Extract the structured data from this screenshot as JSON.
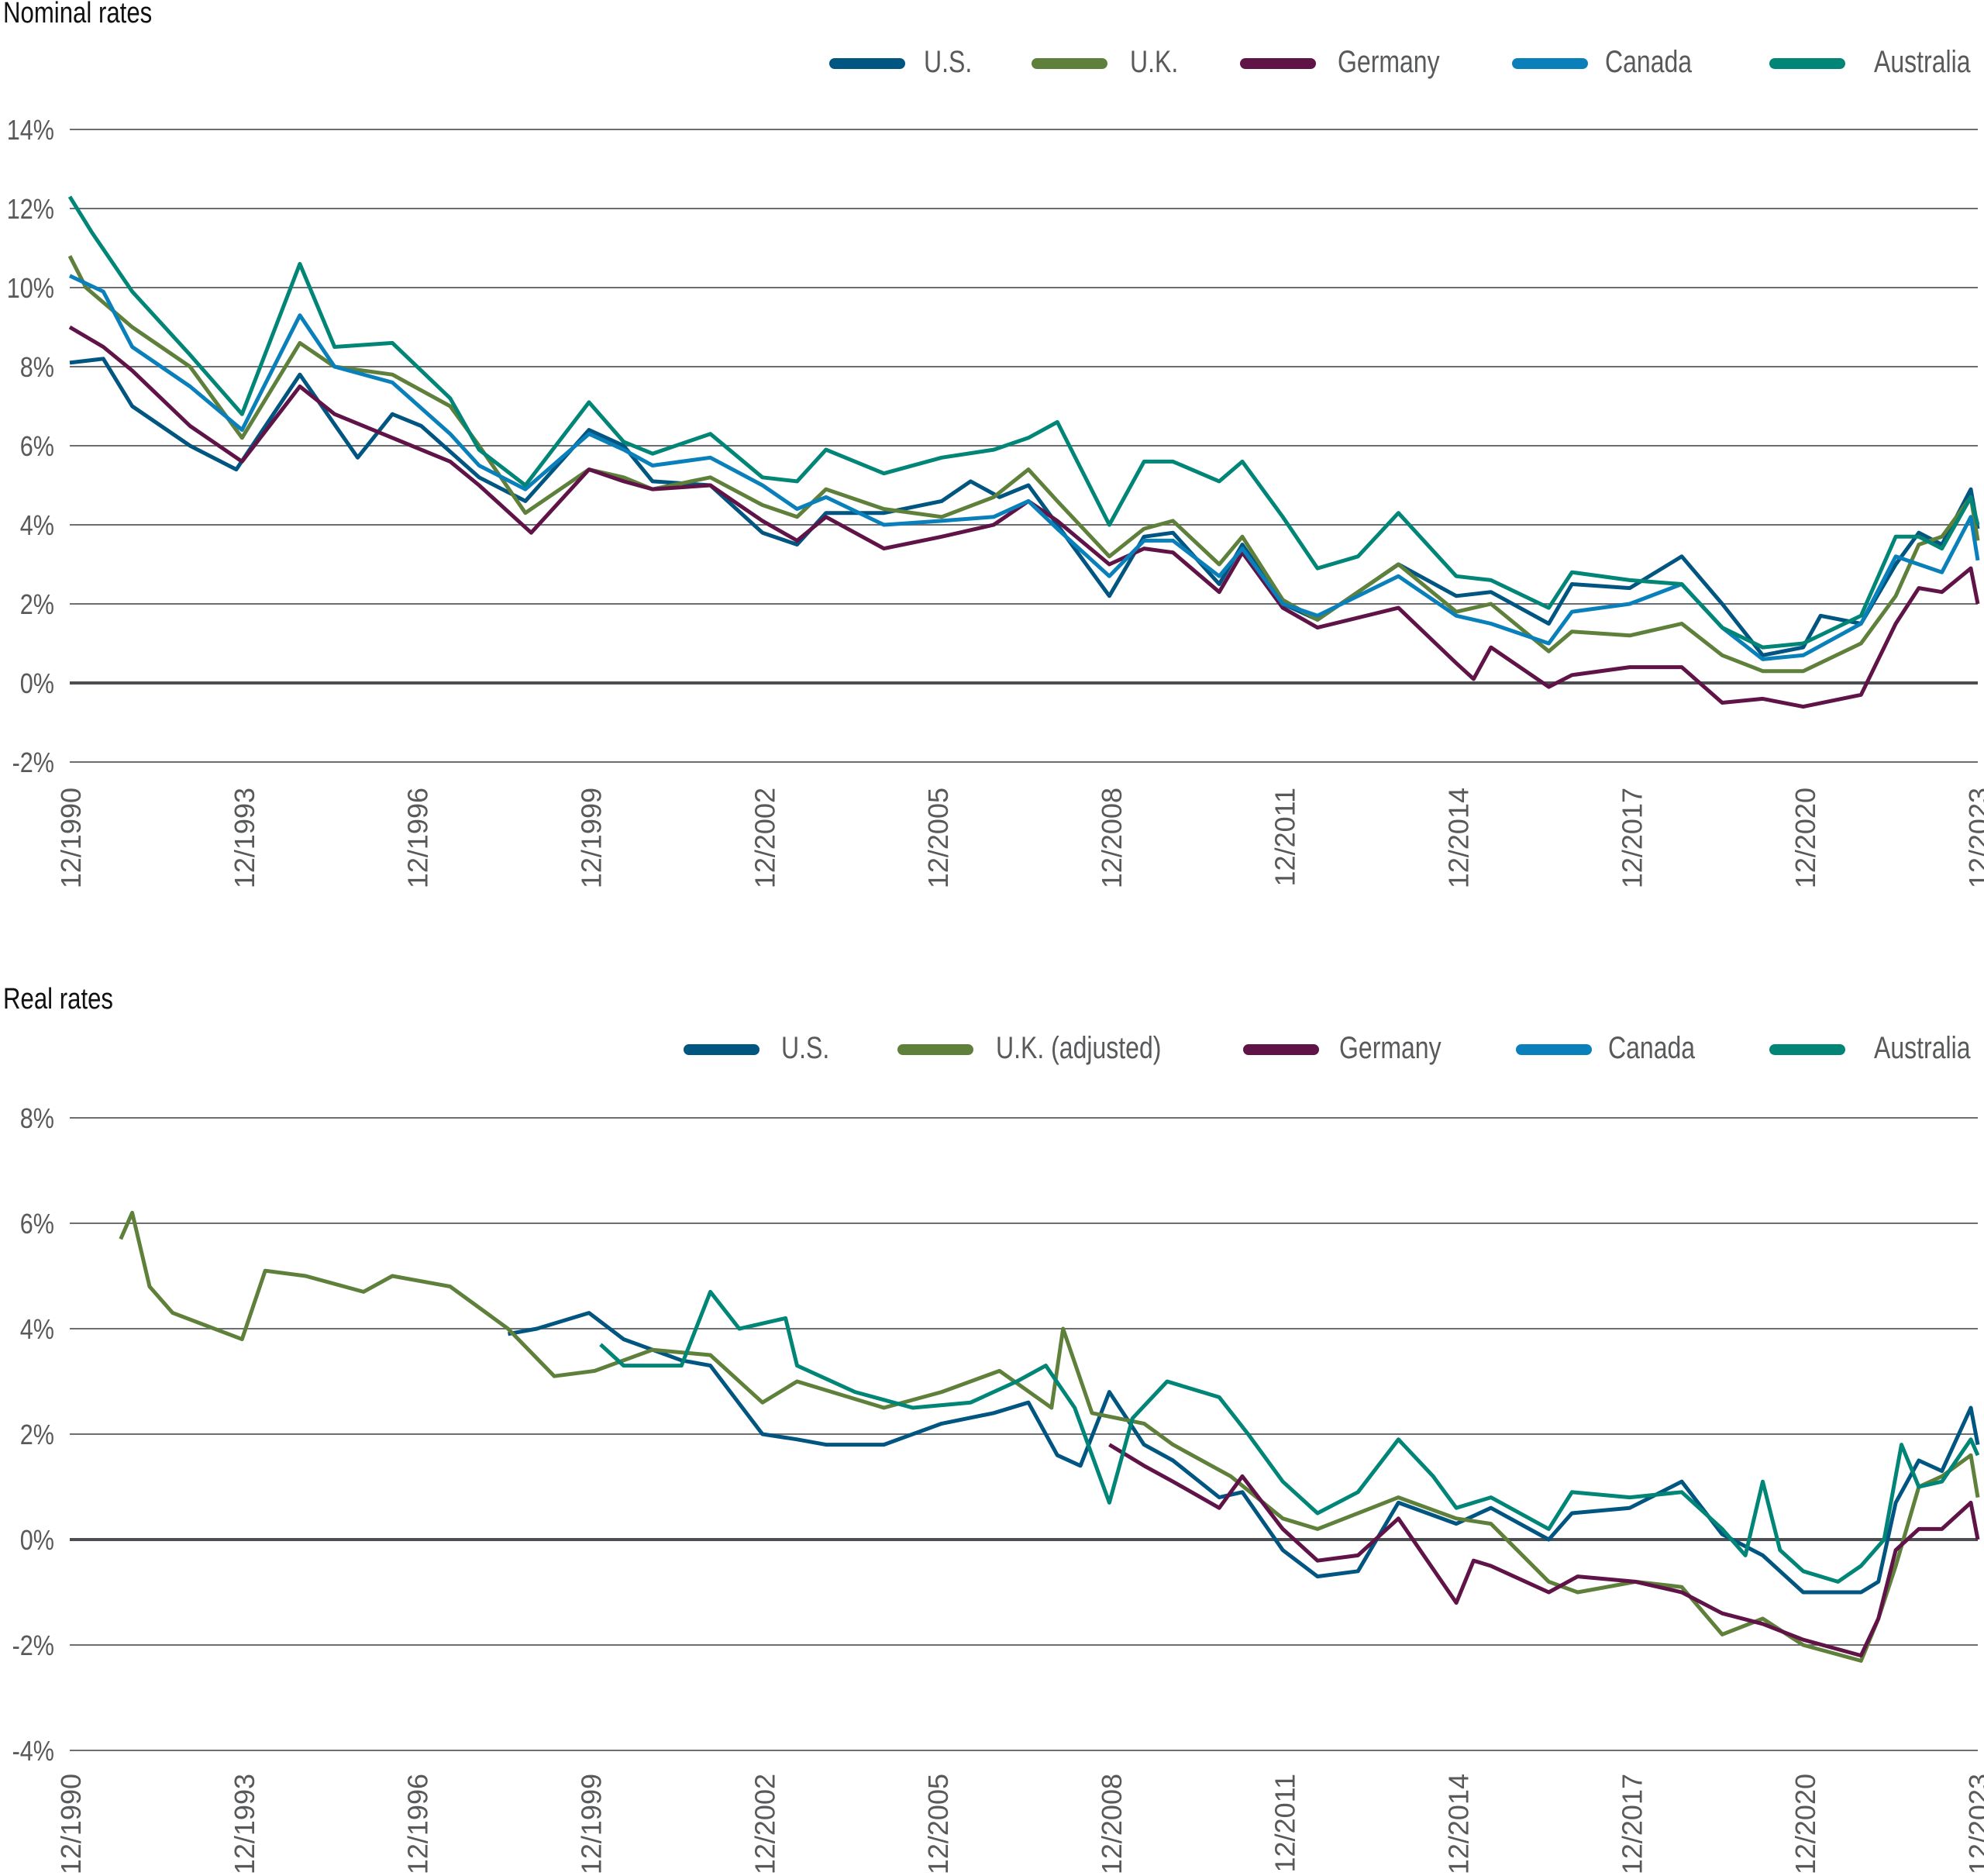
{
  "colors": {
    "us": "#005581",
    "uk": "#5f803a",
    "germany": "#601346",
    "canada": "#0a80bb",
    "australia": "#008577",
    "grid": "#6d6e71",
    "text": "#58595b"
  },
  "chart_data": [
    {
      "type": "line",
      "title": "Nominal rates",
      "xlabel": "",
      "ylabel": "",
      "y_ticks": [
        "14%",
        "12%",
        "10%",
        "8%",
        "6%",
        "4%",
        "2%",
        "0%",
        "-2%"
      ],
      "ylim": [
        -2,
        14
      ],
      "x_ticks": [
        "12/1990",
        "12/1993",
        "12/1996",
        "12/1999",
        "12/2002",
        "12/2005",
        "12/2008",
        "12/2011",
        "12/2014",
        "12/2017",
        "12/2020",
        "12/2023"
      ],
      "xlim": [
        1990.92,
        2023.92
      ],
      "grid": true,
      "legend": "top-right",
      "series": [
        {
          "name": "U.S.",
          "key": "us",
          "x": [
            1990.92,
            1991.5,
            1992,
            1993,
            1993.8,
            1994.9,
            1995.9,
            1996.5,
            1997,
            1998,
            1998.8,
            1999.9,
            2000.5,
            2001,
            2002,
            2002.9,
            2003.5,
            2004,
            2005,
            2006,
            2006.5,
            2007,
            2007.5,
            2008,
            2008.9,
            2009.5,
            2010,
            2010.8,
            2011.2,
            2011.9,
            2012.5,
            2013.5,
            2013.9,
            2014.9,
            2015.5,
            2016.5,
            2016.9,
            2017.9,
            2018.8,
            2019.5,
            2020.2,
            2020.9,
            2021.2,
            2021.9,
            2022.5,
            2022.9,
            2023.3,
            2023.8,
            2023.92
          ],
          "y": [
            8.1,
            8.2,
            7.0,
            6.0,
            5.4,
            7.8,
            5.7,
            6.8,
            6.5,
            5.2,
            4.6,
            6.4,
            6.0,
            5.1,
            5.0,
            3.8,
            3.5,
            4.3,
            4.3,
            4.6,
            5.1,
            4.7,
            5.0,
            4.0,
            2.2,
            3.7,
            3.8,
            2.5,
            3.5,
            2.0,
            1.6,
            2.6,
            3.0,
            2.2,
            2.3,
            1.5,
            2.5,
            2.4,
            3.2,
            2.0,
            0.7,
            0.9,
            1.7,
            1.5,
            3.0,
            3.8,
            3.5,
            4.9,
            3.9
          ]
        },
        {
          "name": "U.K.",
          "key": "uk",
          "x": [
            1990.92,
            1991.2,
            1992,
            1993,
            1993.9,
            1994.9,
            1995.5,
            1996.5,
            1997.5,
            1998,
            1998.8,
            1999.9,
            2000.5,
            2001,
            2002,
            2002.9,
            2003.5,
            2004,
            2005,
            2006,
            2006.9,
            2007.5,
            2008,
            2008.9,
            2009.5,
            2010,
            2010.8,
            2011.2,
            2011.9,
            2012.5,
            2013.9,
            2014.9,
            2015.5,
            2016.5,
            2016.9,
            2017.9,
            2018.8,
            2019.5,
            2020.2,
            2020.9,
            2021.9,
            2022.5,
            2022.9,
            2023.3,
            2023.8,
            2023.92
          ],
          "y": [
            10.8,
            10.0,
            9.0,
            8.0,
            6.2,
            8.6,
            8.0,
            7.8,
            7.0,
            6.0,
            4.3,
            5.4,
            5.2,
            4.9,
            5.2,
            4.5,
            4.2,
            4.9,
            4.4,
            4.2,
            4.7,
            5.4,
            4.6,
            3.2,
            3.9,
            4.1,
            3.0,
            3.7,
            2.1,
            1.6,
            3.0,
            1.8,
            2.0,
            0.8,
            1.3,
            1.2,
            1.5,
            0.7,
            0.3,
            0.3,
            1.0,
            2.2,
            3.5,
            3.7,
            4.7,
            3.6
          ]
        },
        {
          "name": "Germany",
          "key": "germany",
          "x": [
            1990.92,
            1991.5,
            1992,
            1993,
            1993.9,
            1994.9,
            1995.5,
            1996.5,
            1997.5,
            1998,
            1998.9,
            1999.9,
            2000.5,
            2001,
            2002,
            2002.9,
            2003.5,
            2004,
            2005,
            2006,
            2006.9,
            2007.5,
            2008,
            2008.9,
            2009.5,
            2010,
            2010.8,
            2011.2,
            2011.9,
            2012.5,
            2013.9,
            2014.9,
            2015.2,
            2015.5,
            2016.5,
            2016.9,
            2017.9,
            2018.8,
            2019.5,
            2020.2,
            2020.9,
            2021.9,
            2022.5,
            2022.9,
            2023.3,
            2023.8,
            2023.92
          ],
          "y": [
            9.0,
            8.5,
            7.9,
            6.5,
            5.6,
            7.5,
            6.8,
            6.2,
            5.6,
            5.0,
            3.8,
            5.4,
            5.1,
            4.9,
            5.0,
            4.1,
            3.6,
            4.2,
            3.4,
            3.7,
            4.0,
            4.6,
            4.1,
            3.0,
            3.4,
            3.3,
            2.3,
            3.3,
            1.9,
            1.4,
            1.9,
            0.5,
            0.1,
            0.9,
            -0.1,
            0.2,
            0.4,
            0.4,
            -0.5,
            -0.4,
            -0.6,
            -0.3,
            1.5,
            2.4,
            2.3,
            2.9,
            2.0
          ]
        },
        {
          "name": "Canada",
          "key": "canada",
          "x": [
            1990.92,
            1991.5,
            1992,
            1993,
            1993.9,
            1994.9,
            1995.5,
            1996.5,
            1997.5,
            1998,
            1998.8,
            1999.9,
            2000.5,
            2001,
            2002,
            2002.9,
            2003.5,
            2004,
            2005,
            2006,
            2006.9,
            2007.5,
            2008,
            2008.9,
            2009.5,
            2010,
            2010.8,
            2011.2,
            2011.9,
            2012.5,
            2013.9,
            2014.9,
            2015.5,
            2016.5,
            2016.9,
            2017.9,
            2018.8,
            2019.5,
            2020.2,
            2020.9,
            2021.9,
            2022.5,
            2022.9,
            2023.3,
            2023.8,
            2023.92
          ],
          "y": [
            10.3,
            9.9,
            8.5,
            7.5,
            6.4,
            9.3,
            8.0,
            7.6,
            6.3,
            5.5,
            4.9,
            6.3,
            5.9,
            5.5,
            5.7,
            5.0,
            4.4,
            4.7,
            4.0,
            4.1,
            4.2,
            4.6,
            3.9,
            2.7,
            3.6,
            3.6,
            2.7,
            3.4,
            2.0,
            1.7,
            2.7,
            1.7,
            1.5,
            1.0,
            1.8,
            2.0,
            2.5,
            1.4,
            0.6,
            0.7,
            1.5,
            3.2,
            3.0,
            2.8,
            4.2,
            3.1
          ]
        },
        {
          "name": "Australia",
          "key": "australia",
          "x": [
            1990.92,
            1991.3,
            1992,
            1993,
            1993.9,
            1994.9,
            1995.5,
            1996.5,
            1997.5,
            1998,
            1998.8,
            1999.9,
            2000.5,
            2001,
            2002,
            2002.9,
            2003.5,
            2004,
            2005,
            2006,
            2006.9,
            2007.5,
            2008,
            2008.9,
            2009.5,
            2010,
            2010.8,
            2011.2,
            2011.9,
            2012.5,
            2013.2,
            2013.9,
            2014.9,
            2015.5,
            2016.5,
            2016.9,
            2017.9,
            2018.8,
            2019.5,
            2020.2,
            2020.9,
            2021.9,
            2022.5,
            2022.9,
            2023.3,
            2023.8,
            2023.92
          ],
          "y": [
            12.3,
            11.4,
            9.9,
            8.3,
            6.8,
            10.6,
            8.5,
            8.6,
            7.2,
            5.9,
            5.0,
            7.1,
            6.1,
            5.8,
            6.3,
            5.2,
            5.1,
            5.9,
            5.3,
            5.7,
            5.9,
            6.2,
            6.6,
            4.0,
            5.6,
            5.6,
            5.1,
            5.6,
            4.2,
            2.9,
            3.2,
            4.3,
            2.7,
            2.6,
            1.9,
            2.8,
            2.6,
            2.5,
            1.4,
            0.9,
            1.0,
            1.7,
            3.7,
            3.7,
            3.4,
            4.7,
            4.0
          ]
        }
      ]
    },
    {
      "type": "line",
      "title": "Real rates",
      "xlabel": "",
      "ylabel": "",
      "y_ticks": [
        "8%",
        "6%",
        "4%",
        "2%",
        "0%",
        "-2%",
        "-4%"
      ],
      "ylim": [
        -4,
        8
      ],
      "x_ticks": [
        "12/1990",
        "12/1993",
        "12/1996",
        "12/1999",
        "12/2002",
        "12/2005",
        "12/2008",
        "12/2011",
        "12/2014",
        "12/2017",
        "12/2020",
        "12/2023"
      ],
      "xlim": [
        1990.92,
        2023.92
      ],
      "grid": true,
      "legend": "top-right",
      "series": [
        {
          "name": "U.S.",
          "key": "us",
          "x": [
            1998.5,
            1999.0,
            1999.9,
            2000.5,
            2001.5,
            2002,
            2002.9,
            2003.5,
            2004,
            2005,
            2006,
            2006.9,
            2007.5,
            2008,
            2008.4,
            2008.9,
            2009.5,
            2010,
            2010.8,
            2011.2,
            2011.9,
            2012.5,
            2013.2,
            2013.9,
            2014.9,
            2015.5,
            2016.5,
            2016.9,
            2017.9,
            2018.8,
            2019.5,
            2020.2,
            2020.9,
            2021.9,
            2022.2,
            2022.5,
            2022.9,
            2023.3,
            2023.8,
            2023.92
          ],
          "y": [
            3.9,
            4.0,
            4.3,
            3.8,
            3.4,
            3.3,
            2.0,
            1.9,
            1.8,
            1.8,
            2.2,
            2.4,
            2.6,
            1.6,
            1.4,
            2.8,
            1.8,
            1.5,
            0.8,
            0.9,
            -0.2,
            -0.7,
            -0.6,
            0.7,
            0.3,
            0.6,
            0.0,
            0.5,
            0.6,
            1.1,
            0.1,
            -0.3,
            -1.0,
            -1.0,
            -0.8,
            0.7,
            1.5,
            1.3,
            2.5,
            1.8
          ]
        },
        {
          "name": "U.K. (adjusted)",
          "key": "uk",
          "x": [
            1991.8,
            1992.0,
            1992.3,
            1992.7,
            1993.9,
            1994.3,
            1995,
            1996,
            1996.5,
            1997.5,
            1998.5,
            1999.3,
            2000,
            2001,
            2002,
            2002.9,
            2003.5,
            2005,
            2006,
            2007,
            2007.9,
            2008.1,
            2008.6,
            2009.5,
            2010,
            2011,
            2011.9,
            2012.5,
            2013.9,
            2014.9,
            2015.5,
            2016.5,
            2017,
            2018,
            2018.8,
            2019.5,
            2020.2,
            2020.9,
            2021.9,
            2022.2,
            2022.5,
            2022.9,
            2023.3,
            2023.8,
            2023.92
          ],
          "y": [
            5.7,
            6.2,
            4.8,
            4.3,
            3.8,
            5.1,
            5.0,
            4.7,
            5.0,
            4.8,
            4.0,
            3.1,
            3.2,
            3.6,
            3.5,
            2.6,
            3.0,
            2.5,
            2.8,
            3.2,
            2.5,
            4.0,
            2.4,
            2.2,
            1.8,
            1.2,
            0.4,
            0.2,
            0.8,
            0.4,
            0.3,
            -0.8,
            -1.0,
            -0.8,
            -0.9,
            -1.8,
            -1.5,
            -2.0,
            -2.3,
            -1.5,
            -0.5,
            1.0,
            1.2,
            1.6,
            0.8
          ]
        },
        {
          "name": "Germany",
          "key": "germany",
          "x": [
            2008.9,
            2009.5,
            2010,
            2010.8,
            2011.2,
            2011.9,
            2012.5,
            2013.2,
            2013.9,
            2014.9,
            2015.2,
            2015.5,
            2016.5,
            2017,
            2018,
            2018.8,
            2019.5,
            2020.2,
            2020.9,
            2021.9,
            2022.2,
            2022.5,
            2022.9,
            2023.3,
            2023.8,
            2023.92
          ],
          "y": [
            1.8,
            1.4,
            1.1,
            0.6,
            1.2,
            0.2,
            -0.4,
            -0.3,
            0.4,
            -1.2,
            -0.4,
            -0.5,
            -1.0,
            -0.7,
            -0.8,
            -1.0,
            -1.4,
            -1.6,
            -1.9,
            -2.2,
            -1.5,
            -0.2,
            0.2,
            0.2,
            0.7,
            0.0
          ]
        },
        {
          "name": "Canada",
          "key": "canada",
          "x": [],
          "y": []
        },
        {
          "name": "Australia",
          "key": "australia",
          "x": [
            2000.1,
            2000.5,
            2001.5,
            2002.0,
            2002.5,
            2003.3,
            2003.5,
            2004.5,
            2005.5,
            2006.5,
            2007.3,
            2007.8,
            2008.3,
            2008.9,
            2009.3,
            2009.9,
            2010.8,
            2011.3,
            2011.9,
            2012.5,
            2013.2,
            2013.9,
            2014.5,
            2014.9,
            2015.5,
            2016.5,
            2016.9,
            2017.9,
            2018.8,
            2019.5,
            2019.9,
            2020.2,
            2020.5,
            2020.9,
            2021.5,
            2021.9,
            2022.3,
            2022.6,
            2022.9,
            2023.3,
            2023.8,
            2023.92
          ],
          "y": [
            3.7,
            3.3,
            3.3,
            4.7,
            4.0,
            4.2,
            3.3,
            2.8,
            2.5,
            2.6,
            3.0,
            3.3,
            2.5,
            0.7,
            2.3,
            3.0,
            2.7,
            2.0,
            1.1,
            0.5,
            0.9,
            1.9,
            1.2,
            0.6,
            0.8,
            0.2,
            0.9,
            0.8,
            0.9,
            0.2,
            -0.3,
            1.1,
            -0.2,
            -0.6,
            -0.8,
            -0.5,
            0.0,
            1.8,
            1.0,
            1.1,
            1.9,
            1.6
          ]
        }
      ]
    }
  ]
}
